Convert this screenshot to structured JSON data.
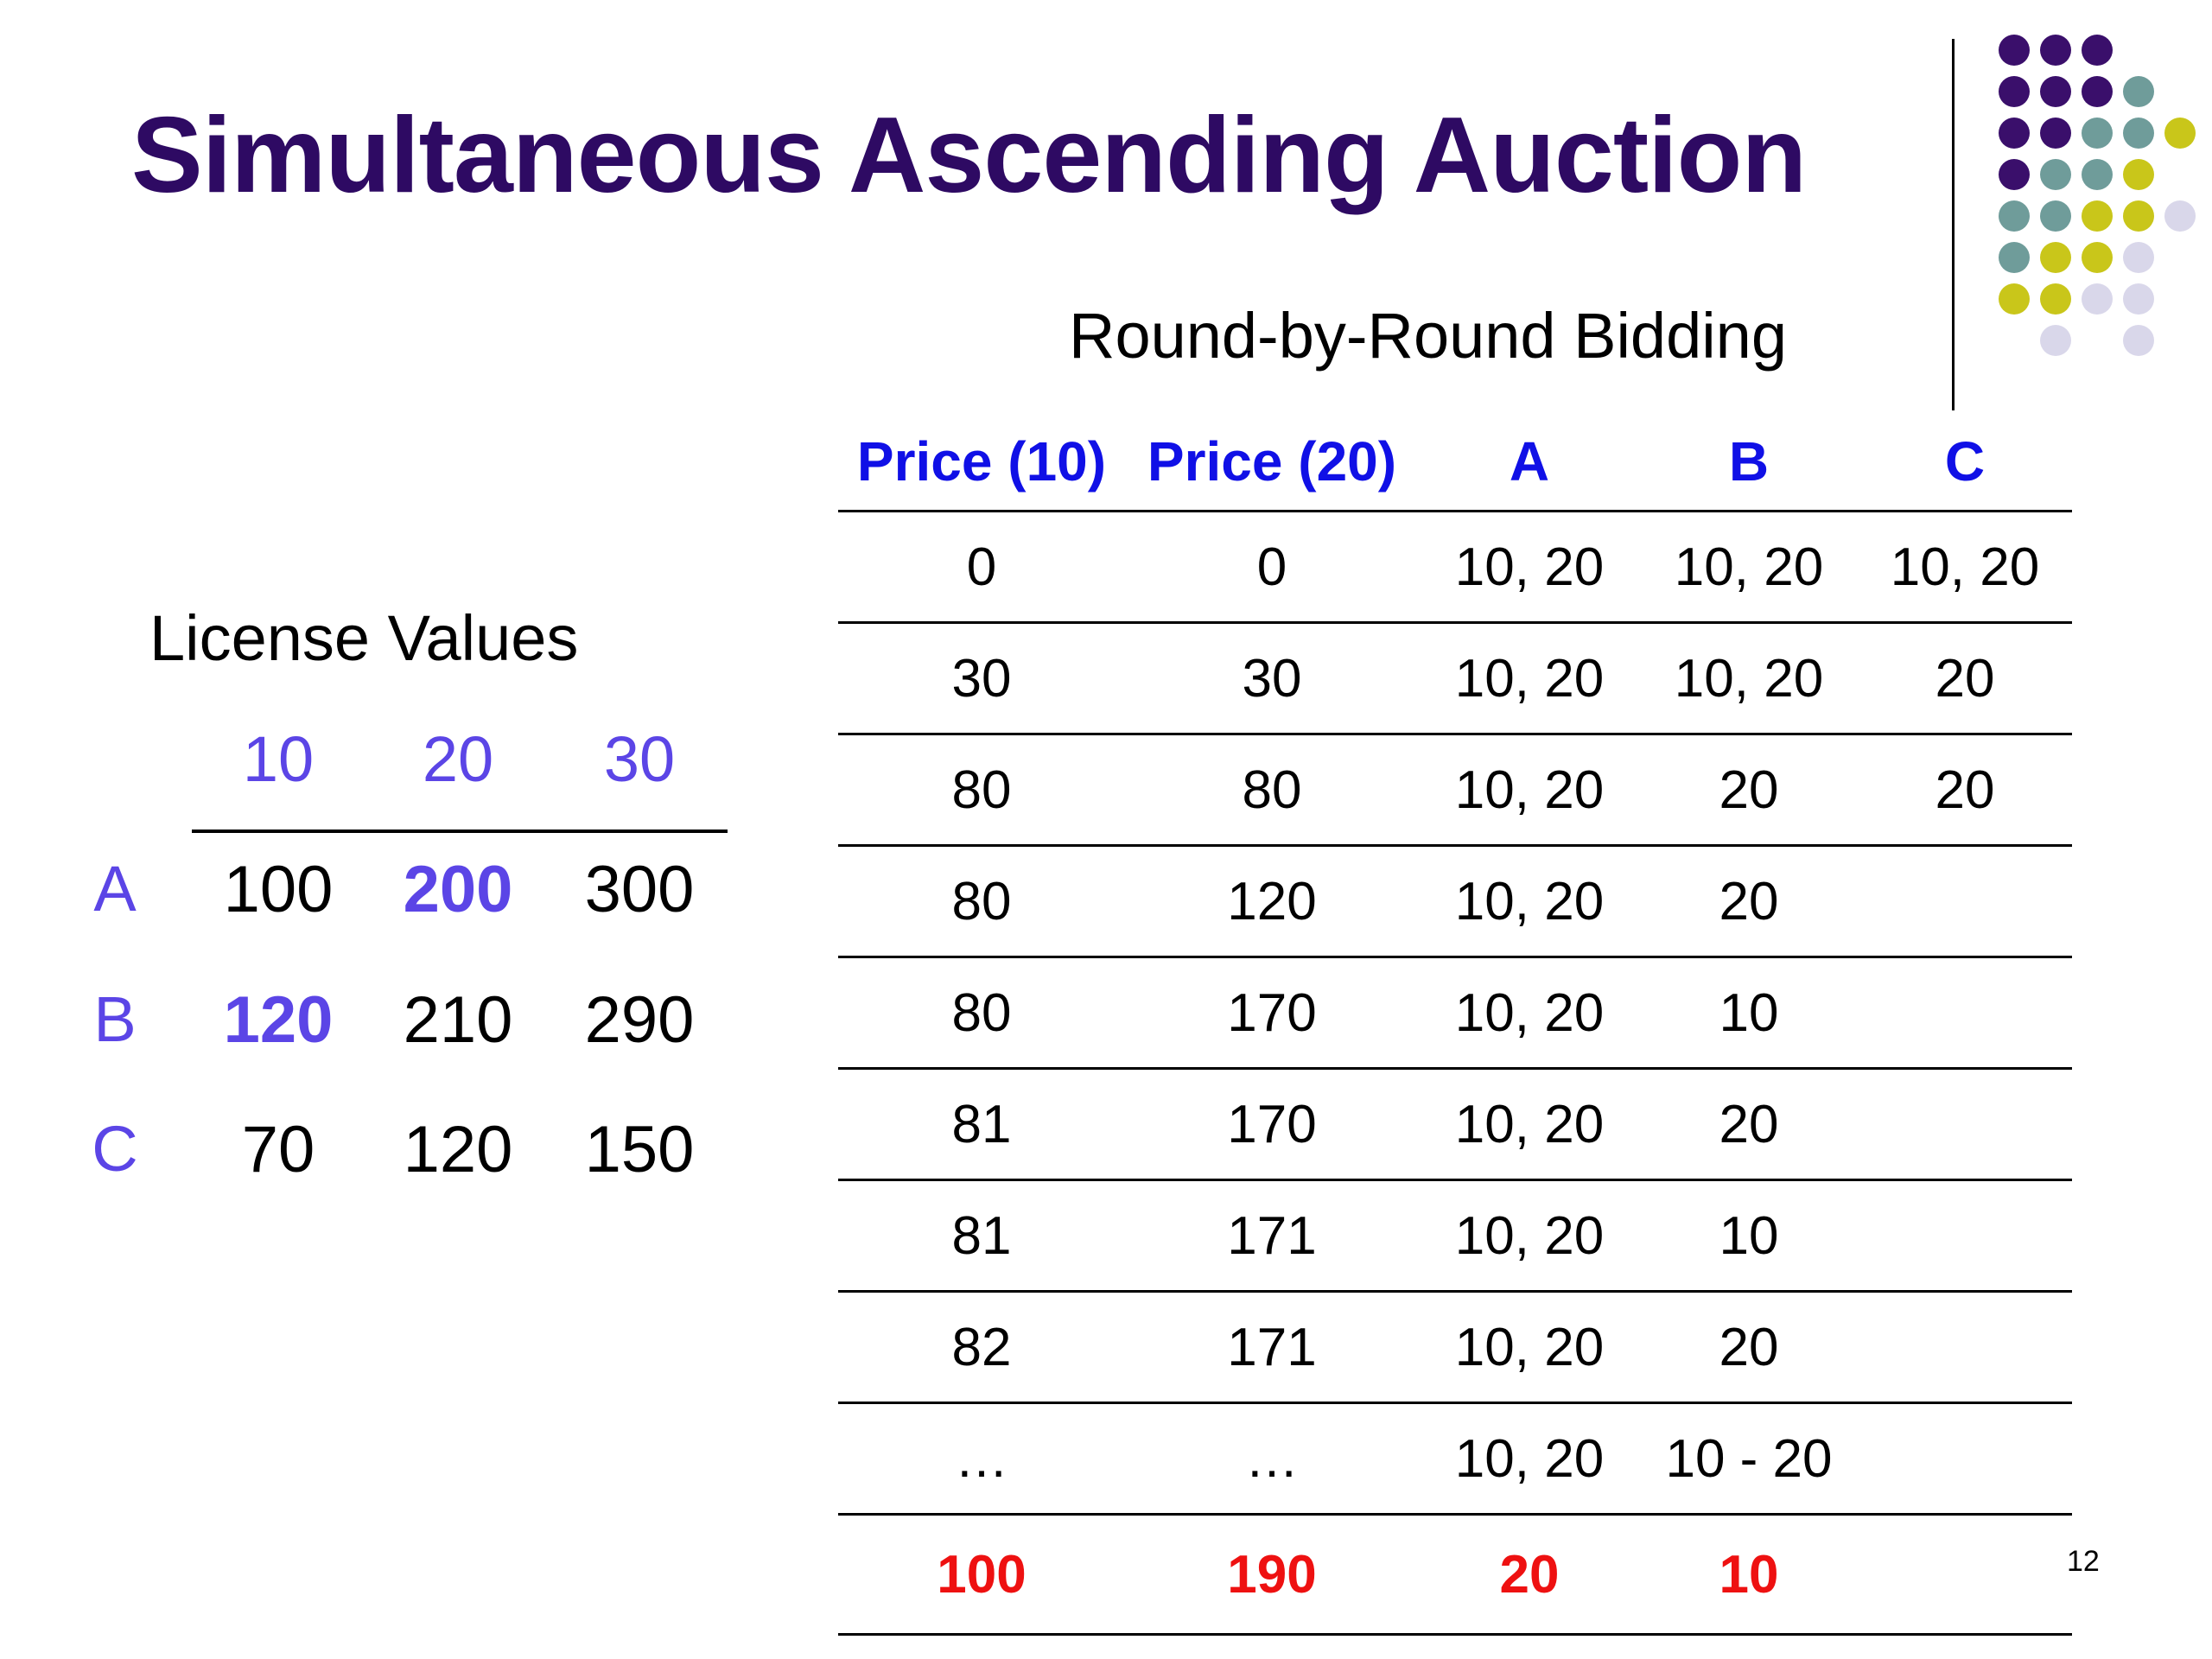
{
  "slide": {
    "title": "Simultaneous Ascending Auction",
    "subtitle": "Round-by-Round Bidding",
    "page_number": "12"
  },
  "license_values": {
    "title": "License Values",
    "columns": [
      "10",
      "20",
      "30"
    ],
    "rows": [
      {
        "label": "A",
        "values": [
          "100",
          "200",
          "300"
        ],
        "highlight": [
          false,
          true,
          false
        ]
      },
      {
        "label": "B",
        "values": [
          "120",
          "210",
          "290"
        ],
        "highlight": [
          true,
          false,
          false
        ]
      },
      {
        "label": "C",
        "values": [
          "70",
          "120",
          "150"
        ],
        "highlight": [
          false,
          false,
          false
        ]
      }
    ]
  },
  "bidding": {
    "headers": [
      "Price (10)",
      "Price (20)",
      "A",
      "B",
      "C"
    ],
    "rows": [
      [
        "0",
        "0",
        "10, 20",
        "10, 20",
        "10, 20"
      ],
      [
        "30",
        "30",
        "10, 20",
        "10, 20",
        "20"
      ],
      [
        "80",
        "80",
        "10, 20",
        "20",
        "20"
      ],
      [
        "80",
        "120",
        "10, 20",
        "20",
        ""
      ],
      [
        "80",
        "170",
        "10, 20",
        "10",
        ""
      ],
      [
        "81",
        "170",
        "10, 20",
        "20",
        ""
      ],
      [
        "81",
        "171",
        "10, 20",
        "10",
        ""
      ],
      [
        "82",
        "171",
        "10, 20",
        "20",
        ""
      ],
      [
        "…",
        "…",
        "10, 20",
        "10 - 20",
        ""
      ]
    ],
    "final_row": [
      "100",
      "190",
      "20",
      "10",
      ""
    ]
  },
  "colors": {
    "title": "#2e0a63",
    "accent_blue": "#1010e6",
    "accent_violet": "#5b45e6",
    "final_red": "#ee1111",
    "dot_purple": "#3a0f6b",
    "dot_teal": "#6f9c9a",
    "dot_olive": "#c9c61a",
    "dot_lavender": "#d9d7ea"
  }
}
